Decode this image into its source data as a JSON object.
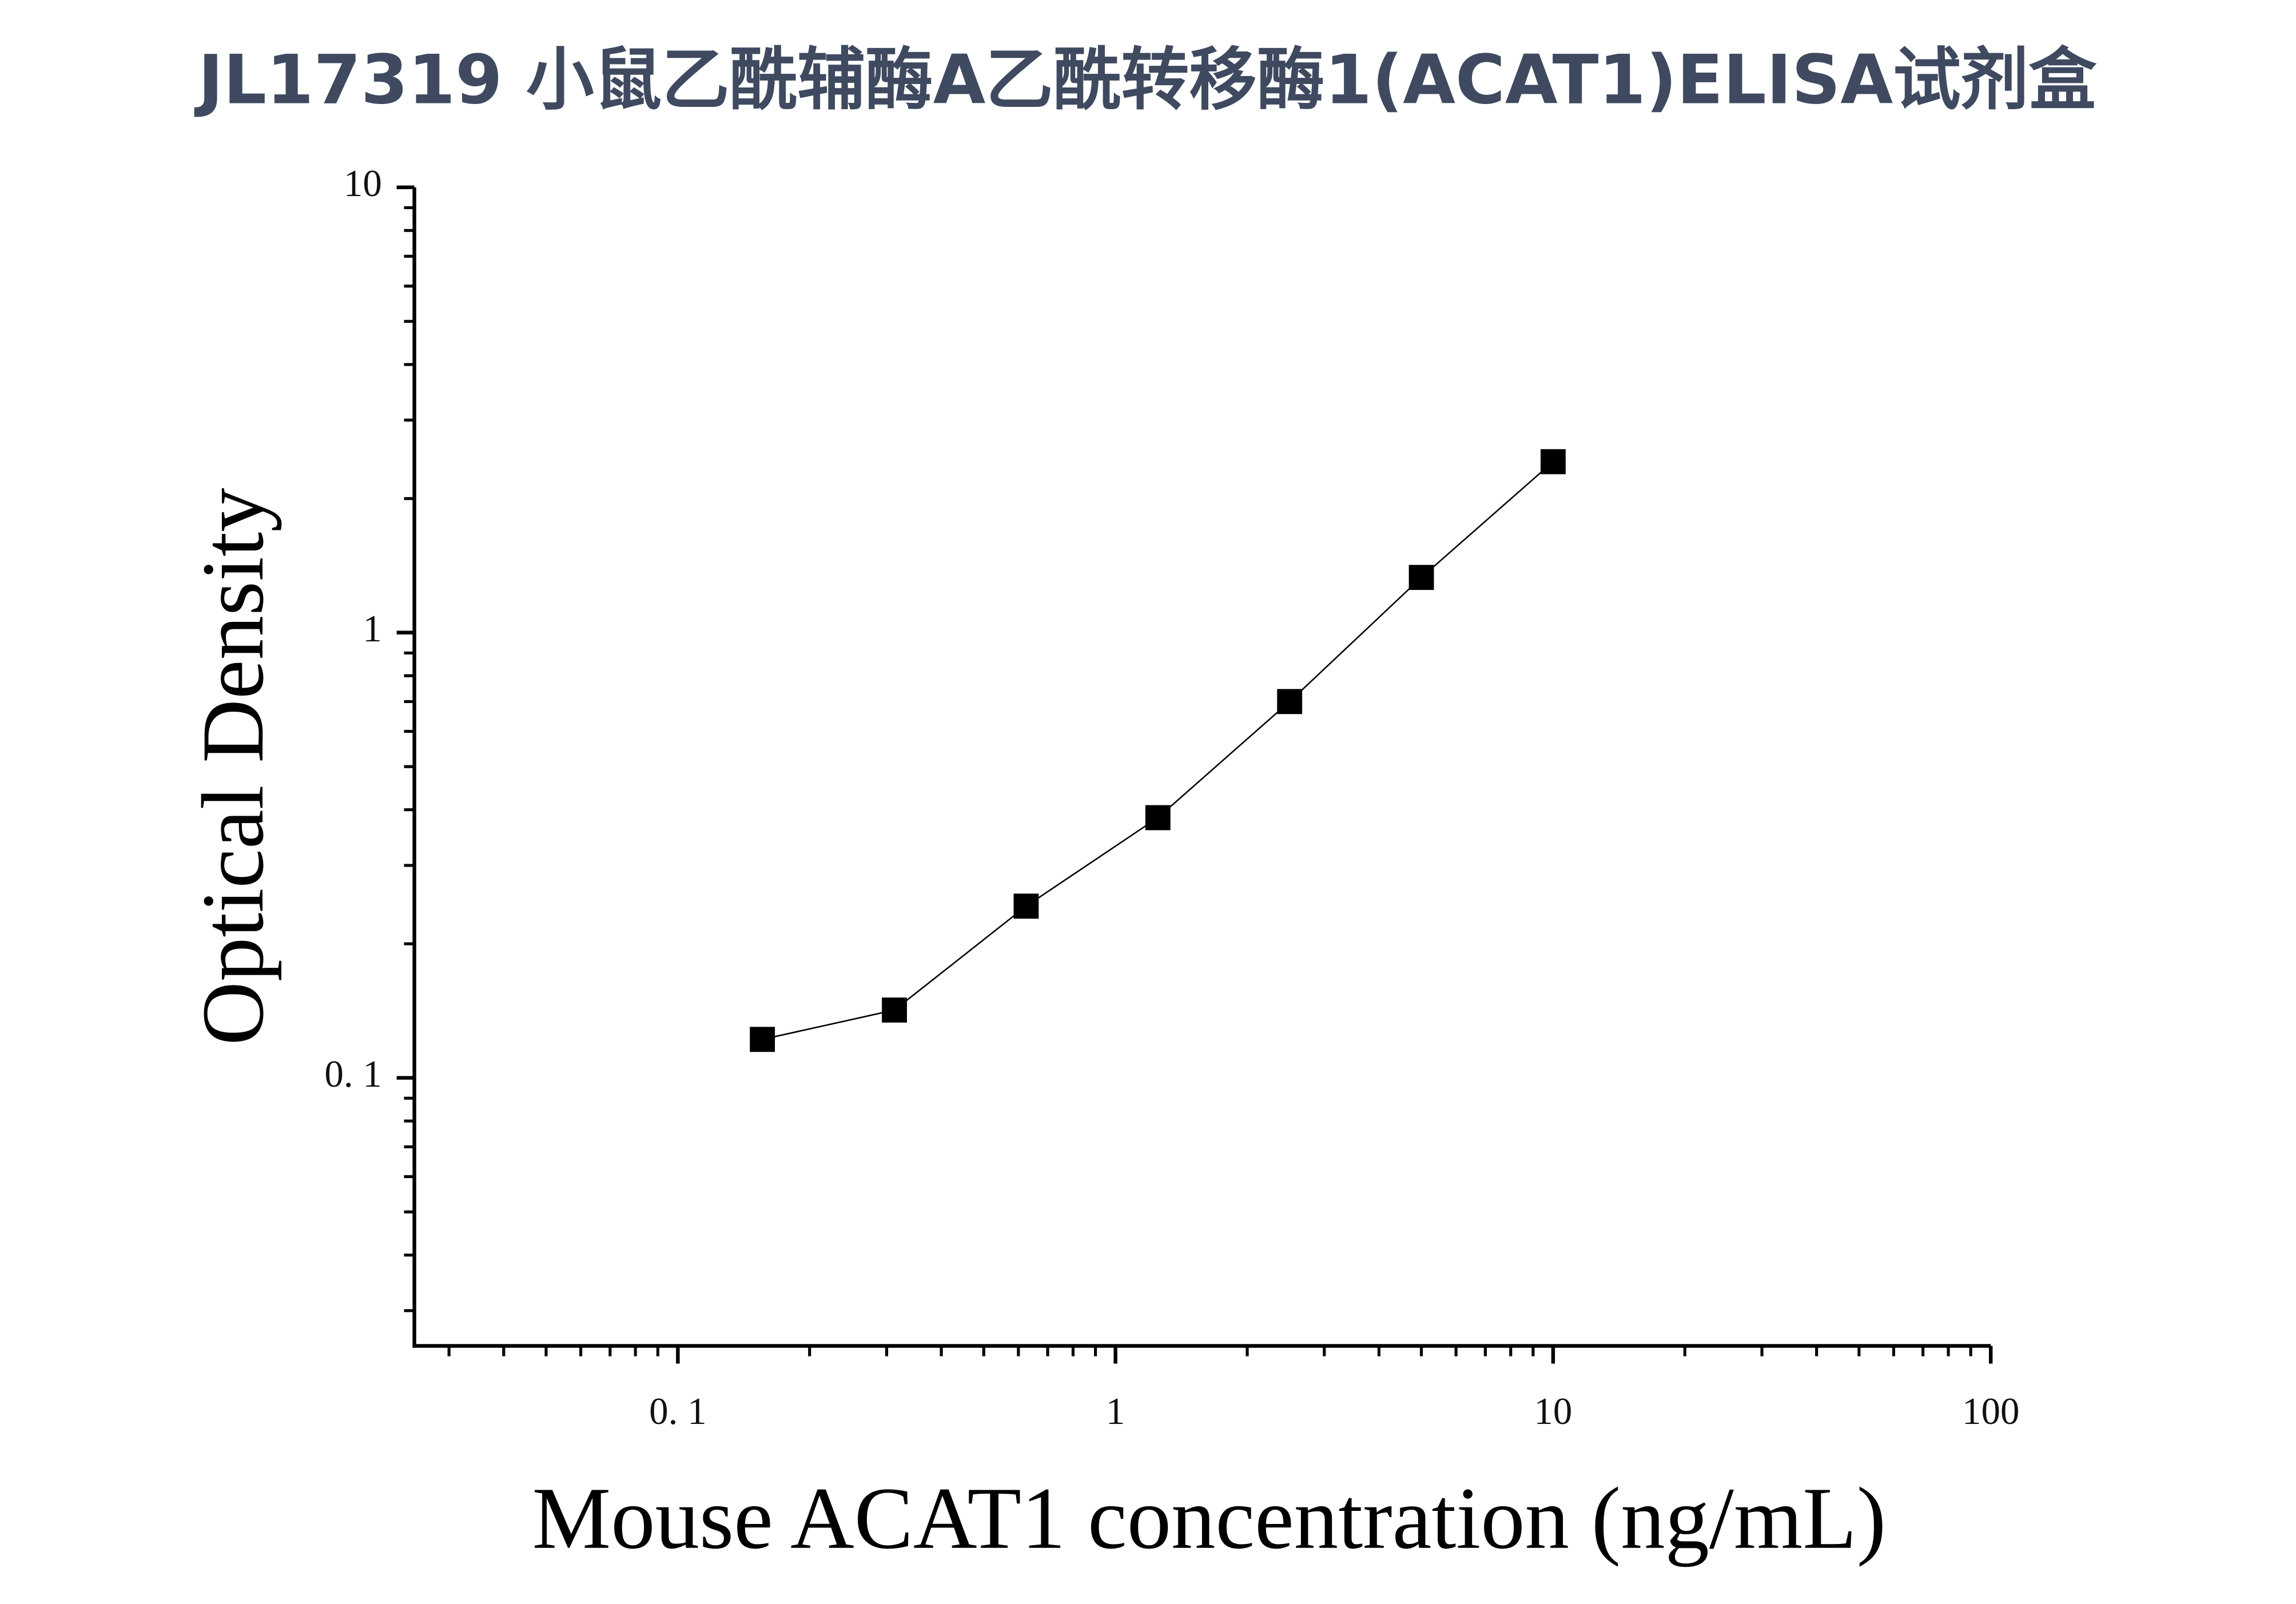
{
  "chart_data": {
    "type": "line",
    "title": "JL17319 小鼠乙酰辅酶A乙酰转移酶1(ACAT1)ELISA试剂盒",
    "x_label": "Mouse ACAT1 concentration (ng/mL)",
    "y_label": "Optical Density",
    "x": [
      0.156,
      0.3125,
      0.625,
      1.25,
      2.5,
      5,
      10
    ],
    "series": [
      {
        "color": "#000000",
        "values": [
          0.122,
          0.142,
          0.243,
          0.384,
          0.7,
          1.33,
          2.42
        ]
      }
    ],
    "x_log": true,
    "y_log": true,
    "minor_ticks": true,
    "xlim": [
      0.025,
      100
    ],
    "ylim": [
      0.025,
      10
    ],
    "xticks": [
      {
        "value": 0.1,
        "label": "0. 1"
      },
      1,
      10,
      100
    ],
    "yticks": [
      {
        "value": 0.1,
        "label": "0. 1"
      },
      1,
      10
    ]
  }
}
